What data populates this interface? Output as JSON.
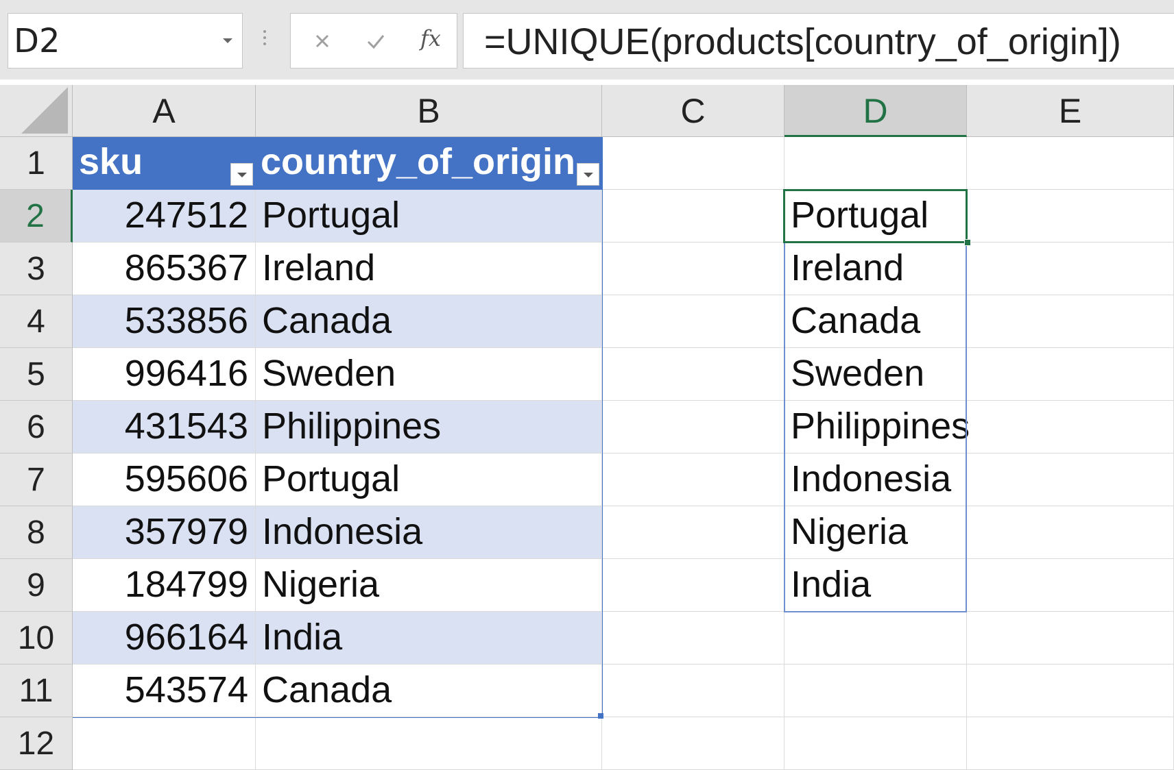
{
  "formula_bar": {
    "name_box": "D2",
    "formula": "=UNIQUE(products[country_of_origin])",
    "fx_label": "fx",
    "cancel_icon": "close-icon",
    "enter_icon": "checkmark-icon"
  },
  "columns": [
    "A",
    "B",
    "C",
    "D",
    "E"
  ],
  "active_column": "D",
  "rows": [
    "1",
    "2",
    "3",
    "4",
    "5",
    "6",
    "7",
    "8",
    "9",
    "10",
    "11",
    "12"
  ],
  "active_row": "2",
  "table": {
    "name": "products",
    "headers": [
      "sku",
      "country_of_origin"
    ],
    "rows": [
      [
        "247512",
        "Portugal"
      ],
      [
        "865367",
        "Ireland"
      ],
      [
        "533856",
        "Canada"
      ],
      [
        "996416",
        "Sweden"
      ],
      [
        "431543",
        "Philippines"
      ],
      [
        "595606",
        "Portugal"
      ],
      [
        "357979",
        "Indonesia"
      ],
      [
        "184799",
        "Nigeria"
      ],
      [
        "966164",
        "India"
      ],
      [
        "543574",
        "Canada"
      ]
    ]
  },
  "spill_results": [
    "Portugal",
    "Ireland",
    "Canada",
    "Sweden",
    "Philippines",
    "Indonesia",
    "Nigeria",
    "India"
  ],
  "colors": {
    "table_header": "#4472c4",
    "table_band": "#d9e1f2",
    "selection": "#217346",
    "spill_border": "#6d8fcf"
  }
}
